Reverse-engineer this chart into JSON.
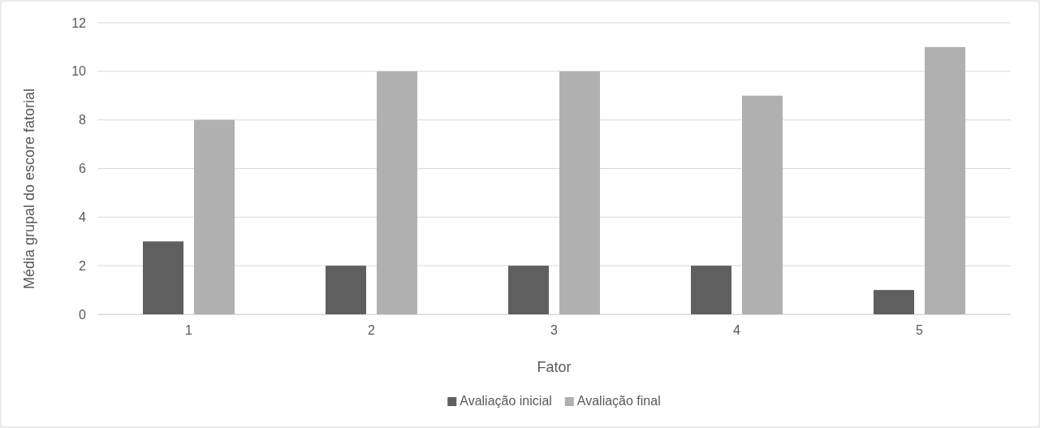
{
  "chart_data": {
    "type": "bar",
    "xlabel": "Fator",
    "ylabel": "Média grupal do escore fatorial",
    "categories": [
      "1",
      "2",
      "3",
      "4",
      "5"
    ],
    "series": [
      {
        "name": "Avaliação inicial",
        "color": "#5f5f5f",
        "values": [
          3,
          2,
          2,
          2,
          1
        ]
      },
      {
        "name": "Avaliação final",
        "color": "#b0b0b0",
        "values": [
          8,
          10,
          10,
          9,
          11
        ]
      }
    ],
    "ylim": [
      0,
      12
    ],
    "yticks": [
      0,
      2,
      4,
      6,
      8,
      10,
      12
    ],
    "grid": "y",
    "legend": "bottom"
  }
}
